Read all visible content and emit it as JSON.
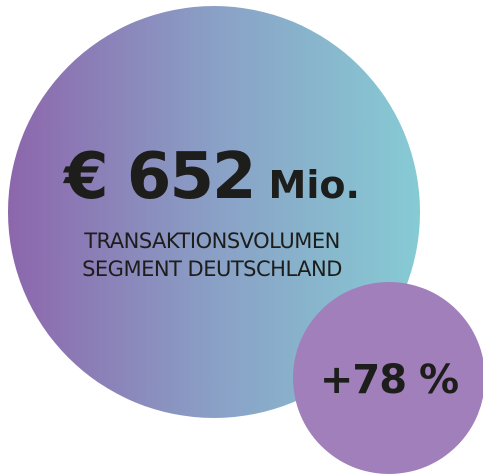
{
  "headline": {
    "value": "€ 652",
    "unit": "Mio."
  },
  "label_lines": [
    "TRANSAKTIONSVOLUMEN",
    "SEGMENT DEUTSCHLAND"
  ],
  "badge": {
    "text": "+78 %"
  }
}
